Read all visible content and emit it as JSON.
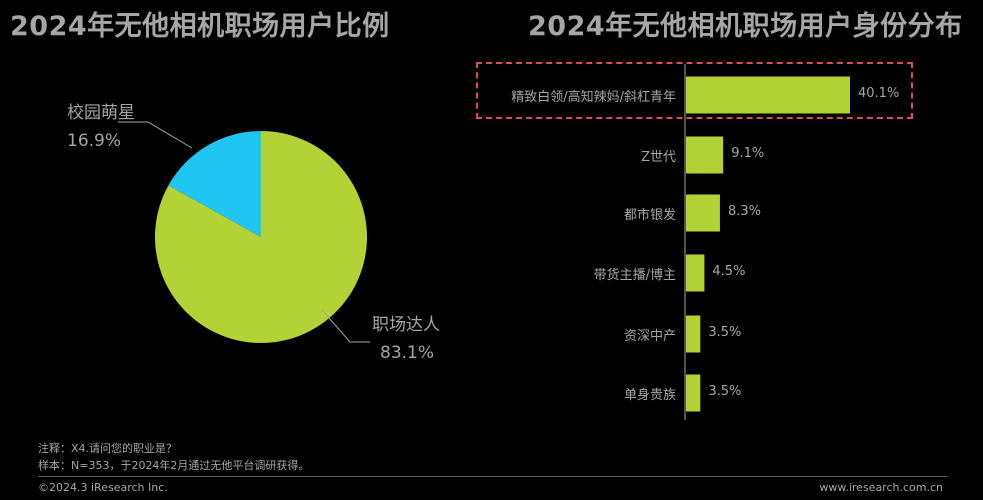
{
  "colors": {
    "background": "#000000",
    "text": "#a6a6a6",
    "bar": "#b2d235",
    "pie_major": "#b2d235",
    "pie_minor": "#1fc6f2",
    "highlight_border": "#e04a5a"
  },
  "footer": {
    "note": "注释：X4.请问您的职业是？",
    "sample": "样本：N=353，于2024年2月通过无他平台调研获得。",
    "copyright": "©2024.3 iResearch Inc.",
    "website": "www.iresearch.com.cn"
  },
  "chart_data": [
    {
      "type": "pie",
      "title": "2024年无他相机职场用户比例",
      "slices": [
        {
          "label": "职场达人",
          "value": 83.1,
          "value_label": "83.1%",
          "color": "#b2d235"
        },
        {
          "label": "校园萌星",
          "value": 16.9,
          "value_label": "16.9%",
          "color": "#1fc6f2"
        }
      ]
    },
    {
      "type": "bar",
      "orientation": "horizontal",
      "title": "2024年无他相机职场用户身份分布",
      "categories": [
        "精致白领/高知辣妈/斜杠青年",
        "Z世代",
        "都市银发",
        "带货主播/博主",
        "资深中产",
        "单身贵族"
      ],
      "values": [
        40.1,
        9.1,
        8.3,
        4.5,
        3.5,
        3.5
      ],
      "value_labels": [
        "40.1%",
        "9.1%",
        "8.3%",
        "4.5%",
        "3.5%",
        "3.5%"
      ],
      "highlighted_category": "精致白领/高知辣妈/斜杠青年"
    }
  ]
}
